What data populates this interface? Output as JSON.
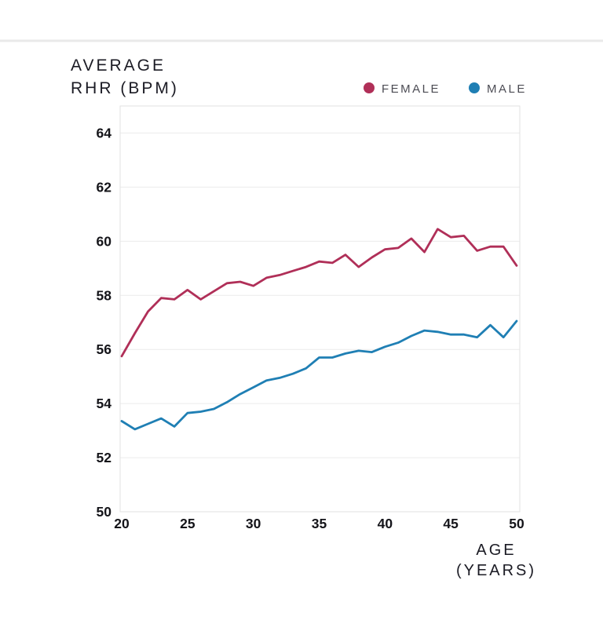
{
  "title": {
    "line1": "AVERAGE",
    "line2": "RHR (BPM)"
  },
  "legend": [
    {
      "label": "FEMALE",
      "color": "#b02f58"
    },
    {
      "label": "MALE",
      "color": "#1f7fb4"
    }
  ],
  "x_axis": {
    "label_line1": "AGE",
    "label_line2": "(YEARS)",
    "ticks": [
      20,
      25,
      30,
      35,
      40,
      45,
      50
    ]
  },
  "y_axis": {
    "ticks": [
      50,
      52,
      54,
      56,
      58,
      60,
      62,
      64
    ]
  },
  "colors": {
    "female_line": "#b02f58",
    "male_line": "#1f7fb4",
    "grid": "#ececec",
    "tick_text": "#141419",
    "title_text": "#1b1b24",
    "legend_text": "#4c4c54",
    "background": "#ffffff"
  },
  "chart_data": {
    "type": "line",
    "title": "AVERAGE RHR (BPM)",
    "xlabel": "AGE (YEARS)",
    "ylabel": "AVERAGE RHR (BPM)",
    "x": [
      20,
      21,
      22,
      23,
      24,
      25,
      26,
      27,
      28,
      29,
      30,
      31,
      32,
      33,
      34,
      35,
      36,
      37,
      38,
      39,
      40,
      41,
      42,
      43,
      44,
      45,
      46,
      47,
      48,
      49,
      50
    ],
    "series": [
      {
        "name": "FEMALE",
        "color": "#b02f58",
        "values": [
          55.75,
          56.6,
          57.4,
          57.9,
          57.85,
          58.2,
          57.85,
          58.15,
          58.45,
          58.5,
          58.35,
          58.65,
          58.75,
          58.9,
          59.05,
          59.25,
          59.2,
          59.5,
          59.05,
          59.4,
          59.7,
          59.75,
          60.1,
          59.6,
          60.45,
          60.15,
          60.2,
          59.65,
          59.8,
          59.8,
          59.1
        ]
      },
      {
        "name": "MALE",
        "color": "#1f7fb4",
        "values": [
          53.35,
          53.05,
          53.25,
          53.45,
          53.15,
          53.65,
          53.7,
          53.8,
          54.05,
          54.35,
          54.6,
          54.85,
          54.95,
          55.1,
          55.3,
          55.7,
          55.7,
          55.85,
          55.95,
          55.9,
          56.1,
          56.25,
          56.5,
          56.7,
          56.65,
          56.55,
          56.55,
          56.45,
          56.9,
          56.45,
          57.05
        ]
      }
    ],
    "xlim": [
      20,
      50
    ],
    "ylim": [
      50,
      65
    ],
    "x_tick_step": 5,
    "y_tick_step": 2,
    "grid": "horizontal",
    "legend_position": "top-right"
  }
}
